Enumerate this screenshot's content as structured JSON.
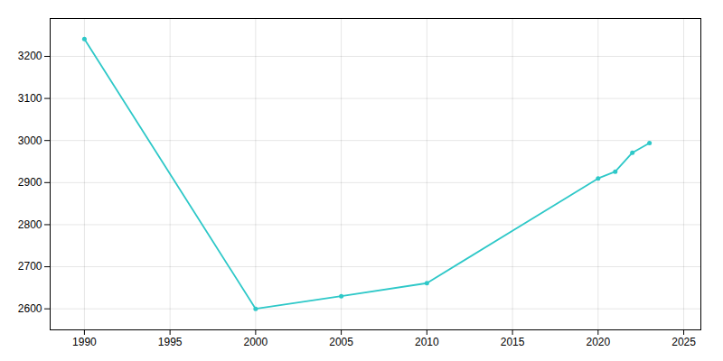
{
  "chart_data": {
    "type": "line",
    "x": [
      1990,
      2000,
      2005,
      2010,
      2020,
      2021,
      2022,
      2023
    ],
    "values": [
      3241,
      2600,
      2630,
      2661,
      2910,
      2926,
      2971,
      2994
    ],
    "color": "#2ec8c8",
    "marker": "circle",
    "xlim": [
      1988,
      2026
    ],
    "ylim": [
      2550,
      3290
    ],
    "xticks": [
      1990,
      1995,
      2000,
      2005,
      2010,
      2015,
      2020,
      2025
    ],
    "yticks": [
      2600,
      2700,
      2800,
      2900,
      3000,
      3100,
      3200
    ],
    "grid": true
  }
}
